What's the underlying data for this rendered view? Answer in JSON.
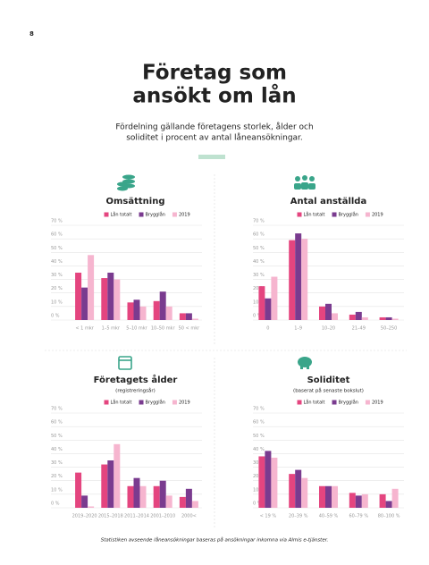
{
  "page_number": "8",
  "title_lines": [
    "Företag som",
    "ansökt om lån"
  ],
  "subtitle_lines": [
    "Fördelning gällande företagens storlek, ålder och",
    "soliditet i procent av antal låneansökningar."
  ],
  "footnote": "Statistiken avseende låneansökningar baseras på ansökningar inkomna via Almis e-tjänster.",
  "chart_data": [
    {
      "type": "bar",
      "title": "Omsättning",
      "categories": [
        "< 1 mkr",
        "1–5 mkr",
        "5–10 mkr",
        "10–50 mkr",
        "50 < mkr"
      ],
      "series": [
        {
          "name": "Lån totalt",
          "color": "#e4457f",
          "values": [
            35,
            31,
            13,
            14,
            5
          ]
        },
        {
          "name": "Brygglån",
          "color": "#7a3b8f",
          "values": [
            24,
            35,
            15,
            21,
            5
          ]
        },
        {
          "name": "2019",
          "color": "#f6b5cf",
          "values": [
            48,
            30,
            10,
            10,
            1
          ]
        }
      ],
      "ylim": [
        0,
        70
      ],
      "yticks": [
        {
          "value": 0,
          "label": "0 %"
        },
        {
          "value": 10,
          "label": "10 %"
        },
        {
          "value": 20,
          "label": "20 %"
        },
        {
          "value": 30,
          "label": "30 %"
        },
        {
          "value": 40,
          "label": "40 %"
        },
        {
          "value": 50,
          "label": "50 %"
        },
        {
          "value": 60,
          "label": "60 %"
        },
        {
          "value": 70,
          "label": "70 %"
        }
      ],
      "grid": true
    },
    {
      "type": "bar",
      "title": "Antal anställda",
      "categories": [
        "0",
        "1–9",
        "10–20",
        "21–49",
        "50–250"
      ],
      "series": [
        {
          "name": "Lån totalt",
          "color": "#e4457f",
          "values": [
            25,
            59,
            10,
            4,
            2
          ]
        },
        {
          "name": "Brygglån",
          "color": "#7a3b8f",
          "values": [
            16,
            64,
            12,
            6,
            2
          ]
        },
        {
          "name": "2019",
          "color": "#f6b5cf",
          "values": [
            32,
            60,
            5,
            2,
            1
          ]
        }
      ],
      "ylim": [
        0,
        70
      ],
      "yticks": [
        {
          "value": 0,
          "label": "0 %"
        },
        {
          "value": 10,
          "label": "10 %"
        },
        {
          "value": 20,
          "label": "20 %"
        },
        {
          "value": 30,
          "label": "30 %"
        },
        {
          "value": 40,
          "label": "40 %"
        },
        {
          "value": 50,
          "label": "50 %"
        },
        {
          "value": 60,
          "label": "60 %"
        },
        {
          "value": 70,
          "label": "70 %"
        }
      ],
      "grid": true
    },
    {
      "type": "bar",
      "title": "Företagets ålder",
      "subtitle": "(registreringsår)",
      "categories": [
        "2019–2020",
        "2015–2018",
        "2011–2014",
        "2001–2010",
        "2000<"
      ],
      "series": [
        {
          "name": "Lån totalt",
          "color": "#e4457f",
          "values": [
            26,
            32,
            16,
            16,
            8
          ]
        },
        {
          "name": "Brygglån",
          "color": "#7a3b8f",
          "values": [
            9,
            35,
            22,
            20,
            14
          ]
        },
        {
          "name": "2019",
          "color": "#f6b5cf",
          "values": [
            1,
            47,
            16,
            9,
            5
          ]
        }
      ],
      "ylim": [
        0,
        70
      ],
      "yticks": [
        {
          "value": 0,
          "label": "0 %"
        },
        {
          "value": 10,
          "label": "10 %"
        },
        {
          "value": 20,
          "label": "20 %"
        },
        {
          "value": 30,
          "label": "30 %"
        },
        {
          "value": 40,
          "label": "40 %"
        },
        {
          "value": 50,
          "label": "50 %"
        },
        {
          "value": 60,
          "label": "60 %"
        },
        {
          "value": 70,
          "label": "70 %"
        }
      ],
      "grid": true
    },
    {
      "type": "bar",
      "title": "Soliditet",
      "subtitle": "(baserat på senaste bokslut)",
      "categories": [
        "< 19 %",
        "20–39 %",
        "40–59 %",
        "60–79 %",
        "80–100 %"
      ],
      "series": [
        {
          "name": "Lån totalt",
          "color": "#e4457f",
          "values": [
            38,
            25,
            16,
            11,
            10
          ]
        },
        {
          "name": "Brygglån",
          "color": "#7a3b8f",
          "values": [
            42,
            28,
            16,
            9,
            5
          ]
        },
        {
          "name": "2019",
          "color": "#f6b5cf",
          "values": [
            37,
            22,
            16,
            10,
            14
          ]
        }
      ],
      "ylim": [
        0,
        70
      ],
      "yticks": [
        {
          "value": 0,
          "label": "0 %"
        },
        {
          "value": 10,
          "label": "10 %"
        },
        {
          "value": 20,
          "label": "20 %"
        },
        {
          "value": 30,
          "label": "30 %"
        },
        {
          "value": 40,
          "label": "40 %"
        },
        {
          "value": 50,
          "label": "50 %"
        },
        {
          "value": 60,
          "label": "60 %"
        },
        {
          "value": 70,
          "label": "70 %"
        }
      ],
      "grid": true
    }
  ]
}
